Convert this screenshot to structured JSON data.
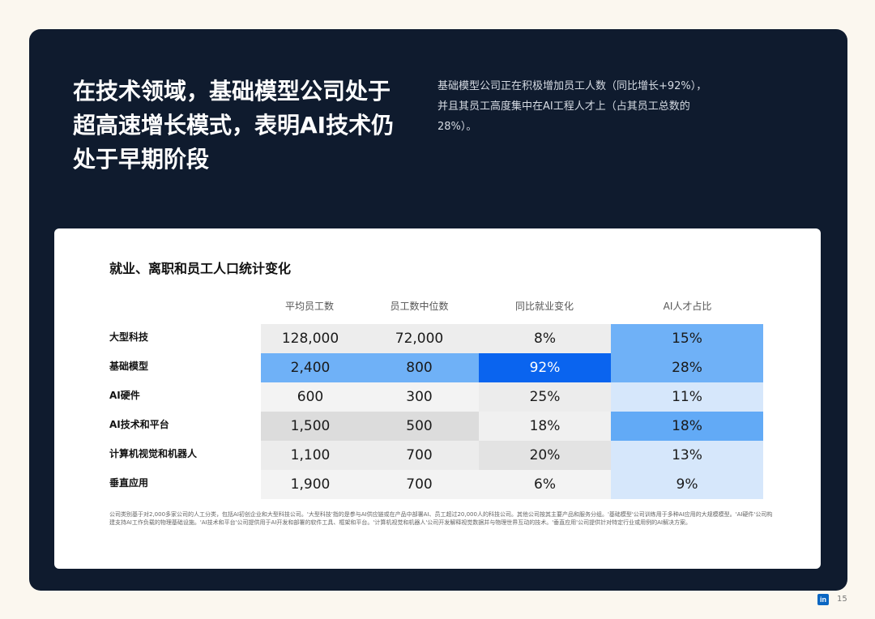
{
  "headline": {
    "lines": [
      "在技术领域，基础模型公司处于",
      "超高速增长模式，表明AI技术仍",
      "处于早期阶段"
    ]
  },
  "subtext": {
    "lines": [
      "基础模型公司正在积极增加员工人数（同比增长+92%），",
      "并且其员工高度集中在AI工程人才上（占其员工总数的",
      "28%）。"
    ]
  },
  "table": {
    "title": "就业、离职和员工人口统计变化",
    "columns": [
      "平均员工数",
      "员工数中位数",
      "同比就业变化",
      "AI人才占比"
    ],
    "rows": [
      {
        "label": "大型科技",
        "cells": [
          "128,000",
          "72,000",
          "8%",
          "15%"
        ]
      },
      {
        "label": "基础模型",
        "cells": [
          "2,400",
          "800",
          "92%",
          "28%"
        ]
      },
      {
        "label": "AI硬件",
        "cells": [
          "600",
          "300",
          "25%",
          "11%"
        ]
      },
      {
        "label": "AI技术和平台",
        "cells": [
          "1,500",
          "500",
          "18%",
          "18%"
        ]
      },
      {
        "label": "计算机视觉和机器人",
        "cells": [
          "1,100",
          "700",
          "20%",
          "13%"
        ]
      },
      {
        "label": "垂直应用",
        "cells": [
          "1,900",
          "700",
          "6%",
          "9%"
        ]
      }
    ],
    "cell_colors": [
      [
        "#ededed",
        "#ededed",
        "#ededed",
        "#6fb1f7"
      ],
      [
        "#6fb1f7",
        "#6fb1f7",
        "#0a64ef",
        "#6fb1f7"
      ],
      [
        "#f3f3f3",
        "#f3f3f3",
        "#ececec",
        "#d6e7fb"
      ],
      [
        "#dcdcdc",
        "#dcdcdc",
        "#f0f0f0",
        "#62aaf6"
      ],
      [
        "#ececec",
        "#ececec",
        "#e3e3e3",
        "#d6e7fb"
      ],
      [
        "#f3f3f3",
        "#f3f3f3",
        "#f3f3f3",
        "#d6e7fb"
      ]
    ]
  },
  "footnote": "公司类别基于对2,000多家公司的人工分类，包括AI初创企业和大型科技公司。'大型科技'指的是参与AI供应链或在产品中部署AI、员工超过20,000人的科技公司。其他公司按其主要产品和服务分组。'基础模型'公司训练用于多种AI应用的大规模模型。'AI硬件'公司构建支持AI工作负载的物理基础设施。'AI技术和平台'公司提供用于AI开发和部署的软件工具、框架和平台。'计算机视觉和机器人'公司开发解释视觉数据并与物理世界互动的技术。'垂直应用'公司提供针对特定行业或用例的AI解决方案。",
  "branding": {
    "logo_text": "in",
    "page_number": "15"
  },
  "colors": {
    "panel": "#0f1b2e",
    "accent_dark_blue": "#0a64ef",
    "accent_blue": "#6fb1f7",
    "accent_light_blue": "#d6e7fb"
  }
}
